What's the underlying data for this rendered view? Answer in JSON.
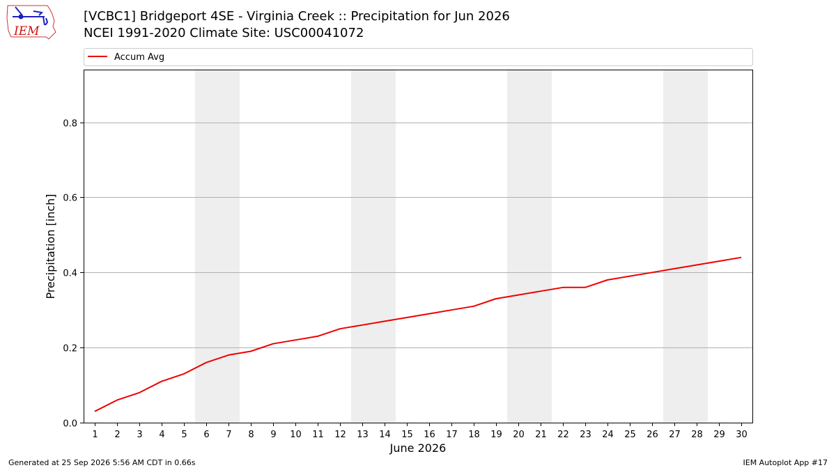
{
  "header": {
    "title": "[VCBC1] Bridgeport 4SE - Virginia Creek :: Precipitation for Jun 2026",
    "subtitle": "NCEI 1991-2020 Climate Site: USC00041072",
    "logo_text": "IEM"
  },
  "footer": {
    "generated": "Generated at 25 Sep 2026 5:56 AM CDT in 0.66s",
    "app": "IEM Autoplot App #17"
  },
  "colors": {
    "line": "#ee0000",
    "weekend_shade": "#eeeeee",
    "grid": "#b0b0b0",
    "logo": "#1f1fbf",
    "logo_text": "#cc1111"
  },
  "chart_data": {
    "type": "line",
    "xlabel": "June 2026",
    "ylabel": "Precipitation [inch]",
    "x": [
      1,
      2,
      3,
      4,
      5,
      6,
      7,
      8,
      9,
      10,
      11,
      12,
      13,
      14,
      15,
      16,
      17,
      18,
      19,
      20,
      21,
      22,
      23,
      24,
      25,
      26,
      27,
      28,
      29,
      30
    ],
    "xticks": [
      "1",
      "2",
      "3",
      "4",
      "5",
      "6",
      "7",
      "8",
      "9",
      "10",
      "11",
      "12",
      "13",
      "14",
      "15",
      "16",
      "17",
      "18",
      "19",
      "20",
      "21",
      "22",
      "23",
      "24",
      "25",
      "26",
      "27",
      "28",
      "29",
      "30"
    ],
    "xlim": [
      0.5,
      30.5
    ],
    "ylim": [
      0,
      0.94
    ],
    "yticks": [
      "0.0",
      "0.2",
      "0.4",
      "0.6",
      "0.8"
    ],
    "ytick_values": [
      0,
      0.2,
      0.4,
      0.6,
      0.8
    ],
    "grid": "horizontal",
    "legend": {
      "placement": "top",
      "entries": [
        "Accum Avg"
      ]
    },
    "shaded_weekends": [
      [
        6,
        7
      ],
      [
        13,
        14
      ],
      [
        20,
        21
      ],
      [
        27,
        28
      ]
    ],
    "series": [
      {
        "name": "Accum Avg",
        "values": [
          0.03,
          0.06,
          0.08,
          0.11,
          0.13,
          0.16,
          0.18,
          0.19,
          0.21,
          0.22,
          0.23,
          0.25,
          0.26,
          0.27,
          0.28,
          0.29,
          0.3,
          0.31,
          0.33,
          0.34,
          0.35,
          0.36,
          0.36,
          0.38,
          0.39,
          0.4,
          0.41,
          0.42,
          0.43,
          0.44
        ]
      }
    ]
  }
}
